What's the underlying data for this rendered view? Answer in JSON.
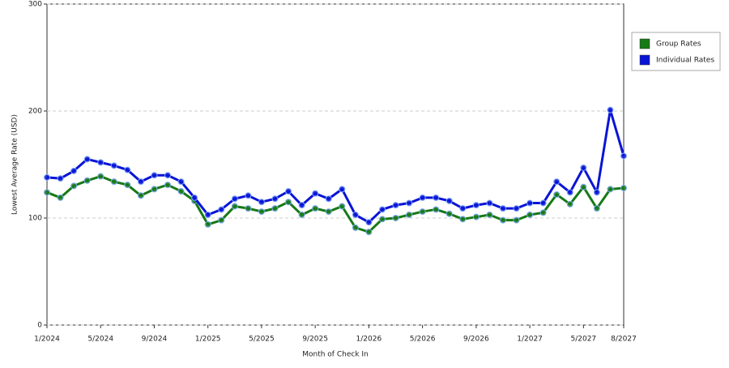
{
  "chart_data": {
    "type": "line",
    "x_label": "Month of Check In",
    "y_label": "Lowest Average Rate (USD)",
    "categories": [
      "1/2024",
      null,
      null,
      null,
      "5/2024",
      null,
      null,
      null,
      "9/2024",
      null,
      null,
      null,
      "1/2025",
      null,
      null,
      null,
      "5/2025",
      null,
      null,
      null,
      "9/2025",
      null,
      null,
      null,
      "1/2026",
      null,
      null,
      null,
      "5/2026",
      null,
      null,
      null,
      "9/2026",
      null,
      null,
      null,
      "1/2027",
      null,
      null,
      null,
      "5/2027",
      null,
      null,
      "8/2027"
    ],
    "series": [
      {
        "name": "Group Rates",
        "color": "#167a16",
        "values": [
          124,
          119,
          130,
          135,
          139,
          134,
          131,
          121,
          127,
          131,
          125,
          116,
          94,
          98,
          111,
          109,
          106,
          109,
          115,
          103,
          109,
          106,
          111,
          91,
          87,
          99,
          100,
          103,
          106,
          108,
          104,
          99,
          101,
          103,
          98,
          98,
          103,
          105,
          122,
          113,
          129,
          109,
          127,
          128
        ]
      },
      {
        "name": "Individual Rates",
        "color": "#0a14d6",
        "values": [
          138,
          137,
          144,
          155,
          152,
          149,
          145,
          134,
          140,
          140,
          134,
          119,
          103,
          108,
          118,
          121,
          115,
          118,
          125,
          112,
          123,
          118,
          127,
          103,
          96,
          108,
          112,
          114,
          119,
          119,
          116,
          109,
          112,
          114,
          109,
          109,
          114,
          114,
          134,
          124,
          147,
          124,
          201,
          158
        ]
      }
    ],
    "ylim": [
      0,
      300
    ],
    "yticks": [
      0,
      100,
      200,
      300
    ],
    "grid": true,
    "legend": "right"
  }
}
